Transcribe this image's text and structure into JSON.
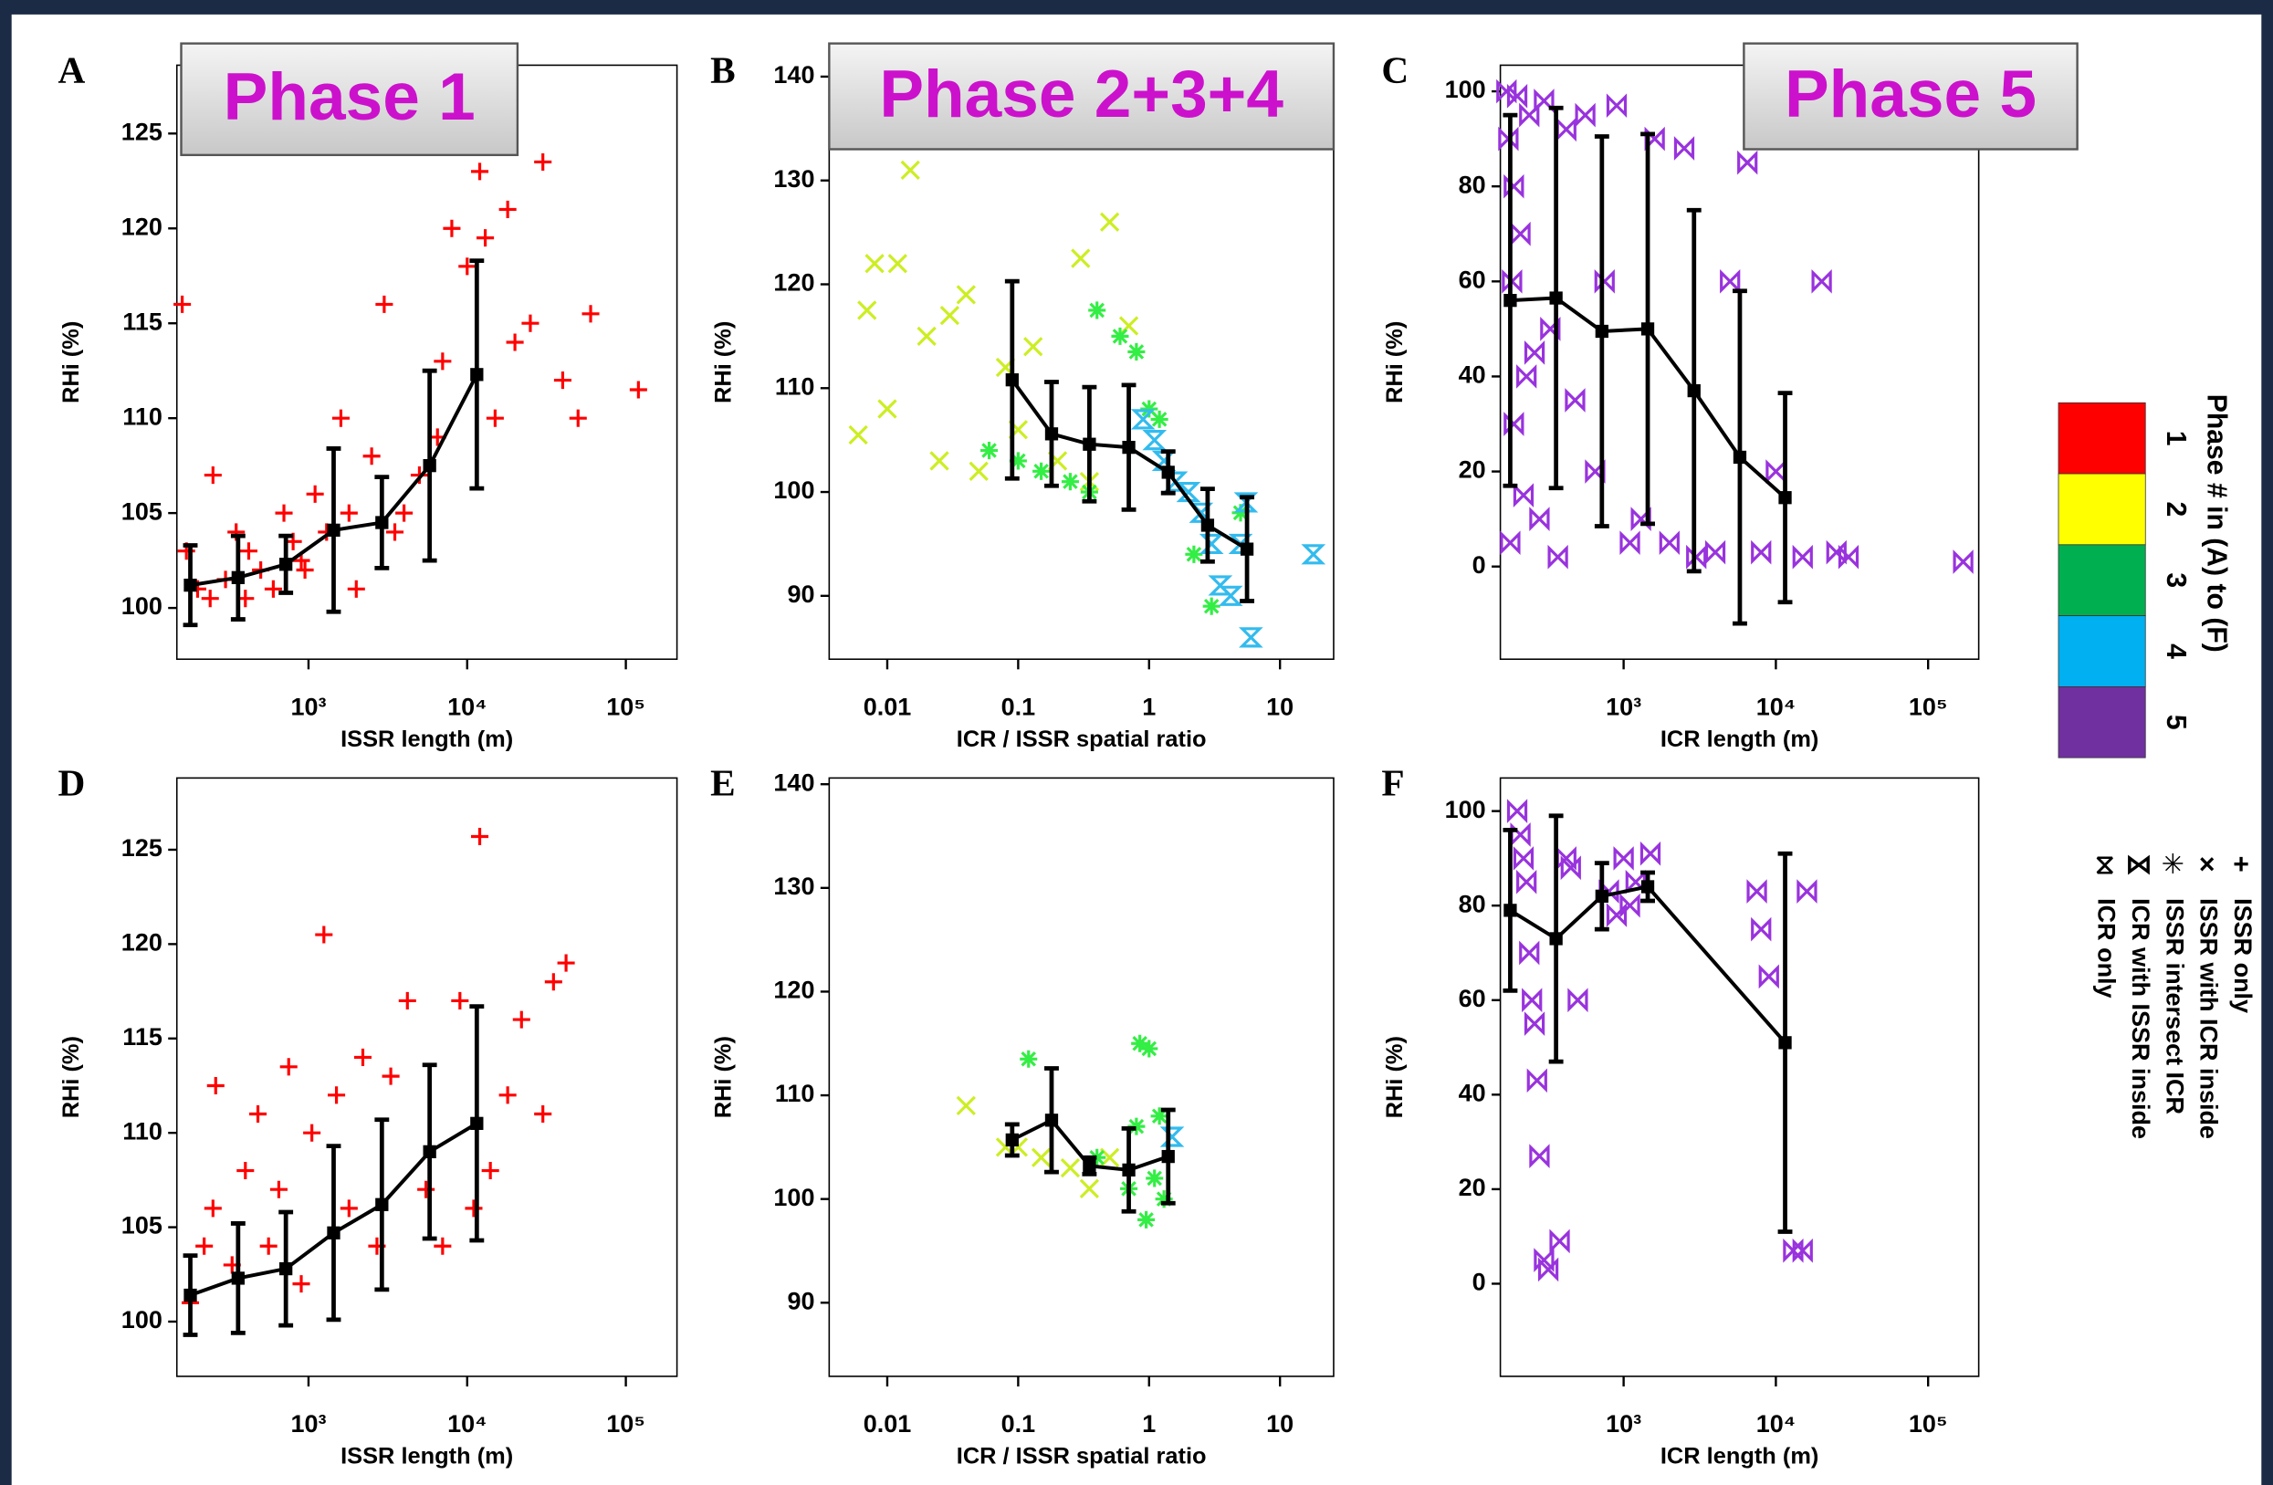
{
  "chart_data": [
    {
      "type": "scatter",
      "panel": "A",
      "title": "Phase 1",
      "x_label": "ISSR length (m)",
      "y_label": "RHi (%)",
      "log_x": true,
      "xlim": [
        148,
        210000
      ],
      "ylim": [
        97.3,
        128.6
      ],
      "xticks": [
        {
          "value": 1000,
          "label": "10³"
        },
        {
          "value": 10000,
          "label": "10⁴"
        },
        {
          "value": 100000,
          "label": "10⁵"
        }
      ],
      "yticks": [
        100,
        105,
        110,
        115,
        120,
        125
      ],
      "series": [
        {
          "marker": "plus",
          "color": "#ff0000",
          "x": [
            160,
            200,
            240,
            300,
            350,
            420,
            500,
            600,
            700,
            800,
            950,
            1100,
            1300,
            1600,
            2000,
            2500,
            3000,
            4000,
            5000,
            6500,
            8000,
            10000,
            12000,
            15000,
            20000,
            25000,
            30000,
            40000,
            50000,
            60000,
            120000,
            170,
            250,
            400,
            900,
            1800,
            3500,
            7000,
            13000,
            18000
          ],
          "values": [
            116,
            101,
            100.5,
            101.5,
            104,
            103,
            102,
            101,
            105,
            103.5,
            102,
            106,
            104,
            110,
            101,
            108,
            116,
            105,
            107,
            109,
            120,
            118,
            123,
            110,
            114,
            115,
            123.5,
            112,
            110,
            115.5,
            111.5,
            103,
            107,
            100.5,
            102.5,
            105,
            104,
            113,
            119.5,
            121
          ]
        }
      ],
      "median": {
        "color": "#000000",
        "x": [
          180,
          360,
          720,
          1440,
          2900,
          5800,
          11500
        ],
        "values": [
          101.2,
          101.6,
          102.3,
          104.1,
          104.5,
          107.5,
          112.3
        ],
        "errors": [
          2.1,
          2.2,
          1.5,
          4.3,
          2.4,
          5.0,
          6.0
        ]
      }
    },
    {
      "type": "scatter",
      "panel": "B",
      "title": "Phase 2+3+4",
      "x_label": "ICR / ISSR spatial ratio",
      "y_label": "RHi (%)",
      "log_x": true,
      "xlim": [
        0.0036,
        25.7
      ],
      "ylim": [
        83.9,
        141.1
      ],
      "xticks": [
        0.01,
        0.1,
        1,
        10
      ],
      "yticks": [
        90,
        100,
        110,
        120,
        130,
        140
      ],
      "series": [
        {
          "marker": "cross",
          "color": "#ccee22",
          "x": [
            0.006,
            0.007,
            0.008,
            0.01,
            0.012,
            0.015,
            0.02,
            0.025,
            0.03,
            0.04,
            0.05,
            0.08,
            0.1,
            0.13,
            0.2,
            0.3,
            0.5,
            0.35,
            0.7
          ],
          "values": [
            105.5,
            117.5,
            122,
            108,
            122,
            131,
            115,
            103,
            117,
            119,
            102,
            112,
            106,
            114,
            103,
            122.5,
            126,
            101,
            116
          ]
        },
        {
          "marker": "star",
          "color": "#33ee44",
          "x": [
            0.06,
            0.1,
            0.15,
            0.25,
            0.4,
            0.6,
            0.8,
            1,
            1.2,
            0.35,
            2.2,
            3,
            5
          ],
          "values": [
            104,
            103,
            102,
            101,
            117.5,
            115,
            113.5,
            108,
            107,
            100,
            94,
            89,
            98
          ]
        },
        {
          "marker": "hourglass",
          "color": "#33bbee",
          "x": [
            0.9,
            1.1,
            1.3,
            1.6,
            2,
            2.5,
            3,
            3.5,
            4.2,
            5,
            5.5,
            6,
            18
          ],
          "values": [
            107,
            105,
            103,
            101,
            100,
            98,
            95,
            91,
            90,
            95,
            99,
            86,
            94
          ]
        }
      ],
      "median": {
        "color": "#000000",
        "x": [
          0.09,
          0.18,
          0.35,
          0.7,
          1.4,
          2.8,
          5.6
        ],
        "values": [
          110.8,
          105.6,
          104.6,
          104.3,
          101.9,
          96.8,
          94.5
        ],
        "errors": [
          9.5,
          5,
          5.5,
          6,
          2,
          3.5,
          5
        ]
      }
    },
    {
      "type": "scatter",
      "panel": "C",
      "title": "Phase 5",
      "x_label": "ICR length (m)",
      "y_label": "RHi (%)",
      "log_x": true,
      "xlim": [
        155,
        215000
      ],
      "ylim": [
        -19.5,
        105.5
      ],
      "xticks": [
        {
          "value": 1000,
          "label": "10³"
        },
        {
          "value": 10000,
          "label": "10⁴"
        },
        {
          "value": 100000,
          "label": "10⁵"
        }
      ],
      "yticks": [
        0,
        20,
        40,
        60,
        80,
        100
      ],
      "series": [
        {
          "marker": "bowtie",
          "color": "#9933dd",
          "x": [
            170,
            175,
            180,
            185,
            190,
            200,
            210,
            220,
            240,
            260,
            280,
            300,
            330,
            370,
            420,
            480,
            560,
            650,
            750,
            900,
            1100,
            1300,
            1600,
            2000,
            2500,
            3000,
            4000,
            5000,
            6500,
            8000,
            10000,
            15000,
            20000,
            25000,
            30000,
            170000,
            190,
            230
          ],
          "values": [
            100,
            90,
            5,
            60,
            30,
            99,
            70,
            15,
            95,
            45,
            10,
            98,
            50,
            2,
            92,
            35,
            95,
            20,
            60,
            97,
            5,
            10,
            90,
            5,
            88,
            2,
            3,
            60,
            85,
            3,
            20,
            2,
            60,
            3,
            2,
            1,
            80,
            40
          ]
        }
      ],
      "median": {
        "color": "#000000",
        "x": [
          180,
          360,
          720,
          1440,
          2900,
          5800,
          11500
        ],
        "values": [
          56,
          56.5,
          49.5,
          50,
          37,
          23,
          14.5
        ],
        "errors": [
          39,
          40,
          41,
          41,
          38,
          35,
          22
        ]
      }
    },
    {
      "type": "scatter",
      "panel": "D",
      "x_label": "ISSR length (m)",
      "y_label": "RHi (%)",
      "log_x": true,
      "xlim": [
        148,
        210000
      ],
      "ylim": [
        97.1,
        128.8
      ],
      "xticks": [
        {
          "value": 1000,
          "label": "10³"
        },
        {
          "value": 10000,
          "label": "10⁴"
        },
        {
          "value": 100000,
          "label": "10⁵"
        }
      ],
      "yticks": [
        100,
        105,
        110,
        115,
        120,
        125
      ],
      "series": [
        {
          "marker": "plus",
          "color": "#ff0000",
          "x": [
            180,
            220,
            260,
            330,
            400,
            480,
            560,
            650,
            750,
            900,
            1050,
            1250,
            1500,
            1800,
            2200,
            2700,
            3300,
            4200,
            5500,
            7000,
            9000,
            11000,
            12000,
            14000,
            18000,
            22000,
            30000,
            35000,
            42000,
            250
          ],
          "values": [
            101,
            104,
            112.5,
            103,
            108,
            111,
            104,
            107,
            113.5,
            102,
            110,
            120.5,
            112,
            106,
            114,
            104,
            113,
            117,
            107,
            104,
            117,
            106,
            125.7,
            108,
            112,
            116,
            111,
            118,
            119,
            106
          ]
        }
      ],
      "median": {
        "color": "#000000",
        "x": [
          180,
          360,
          720,
          1440,
          2900,
          5800,
          11500
        ],
        "values": [
          101.4,
          102.3,
          102.8,
          104.7,
          106.2,
          109,
          110.5
        ],
        "errors": [
          2.1,
          2.9,
          3.0,
          4.6,
          4.5,
          4.6,
          6.2
        ]
      }
    },
    {
      "type": "scatter",
      "panel": "E",
      "x_label": "ICR / ISSR spatial ratio",
      "y_label": "RHi (%)",
      "log_x": true,
      "xlim": [
        0.0036,
        25.7
      ],
      "ylim": [
        82.9,
        140.6
      ],
      "xticks": [
        0.01,
        0.1,
        1,
        10
      ],
      "yticks": [
        90,
        100,
        110,
        120,
        130,
        140
      ],
      "series": [
        {
          "marker": "cross",
          "color": "#ccee22",
          "x": [
            0.04,
            0.08,
            0.1,
            0.15,
            0.25,
            0.35,
            0.5
          ],
          "values": [
            109,
            105,
            105,
            104,
            103,
            101,
            104
          ]
        },
        {
          "marker": "star",
          "color": "#33ee44",
          "x": [
            0.12,
            0.4,
            0.7,
            0.85,
            1,
            1.1,
            0.95,
            1.3,
            0.8,
            1.2
          ],
          "values": [
            113.5,
            104,
            101,
            115,
            114.5,
            102,
            98,
            100,
            107,
            108
          ]
        },
        {
          "marker": "hourglass",
          "color": "#33bbee",
          "x": [
            1.5
          ],
          "values": [
            106
          ]
        }
      ],
      "median": {
        "color": "#000000",
        "x": [
          0.09,
          0.18,
          0.35,
          0.7,
          1.4
        ],
        "values": [
          105.7,
          107.6,
          103.2,
          102.8,
          104.1
        ],
        "errors": [
          1.5,
          5,
          0.8,
          4,
          4.5
        ]
      }
    },
    {
      "type": "scatter",
      "panel": "F",
      "x_label": "ICR length (m)",
      "y_label": "RHi (%)",
      "log_x": true,
      "xlim": [
        155,
        215000
      ],
      "ylim": [
        -19.6,
        107
      ],
      "xticks": [
        {
          "value": 1000,
          "label": "10³"
        },
        {
          "value": 10000,
          "label": "10⁴"
        },
        {
          "value": 100000,
          "label": "10⁵"
        }
      ],
      "yticks": [
        0,
        20,
        40,
        60,
        80,
        100
      ],
      "series": [
        {
          "marker": "bowtie",
          "color": "#9933dd",
          "x": [
            200,
            210,
            220,
            230,
            240,
            250,
            260,
            270,
            280,
            300,
            320,
            380,
            420,
            450,
            500,
            800,
            900,
            1000,
            1100,
            1200,
            1500,
            7500,
            8000,
            9000,
            13000,
            15000,
            16000
          ],
          "values": [
            100,
            95,
            90,
            85,
            70,
            60,
            55,
            43,
            27,
            5,
            3,
            9,
            90,
            88,
            60,
            83,
            78,
            90,
            80,
            85,
            91,
            83,
            75,
            65,
            7,
            7,
            83
          ]
        }
      ],
      "median": {
        "color": "#000000",
        "x": [
          180,
          360,
          720,
          1440,
          11500
        ],
        "values": [
          79,
          73,
          82,
          84,
          51
        ],
        "errors": [
          17,
          26,
          7,
          3,
          40
        ]
      }
    }
  ],
  "legend": {
    "colorbar_title": "Phase # in (A) to (F)",
    "colorbar_labels": [
      "1",
      "2",
      "3",
      "4",
      "5"
    ],
    "colorbar_colors": [
      "#ff0000",
      "#ffff00",
      "#00b050",
      "#00b0f0",
      "#7030a0"
    ],
    "markers": [
      {
        "symbol": "+",
        "label": "ISSR only"
      },
      {
        "symbol": "×",
        "label": "ISSR with ICR inside"
      },
      {
        "symbol": "✳",
        "label": "ISSR intersect ICR"
      },
      {
        "symbol": "⋈",
        "label": "ICR with ISSR inside"
      },
      {
        "symbol": "⧖",
        "label": "ICR only"
      }
    ]
  }
}
